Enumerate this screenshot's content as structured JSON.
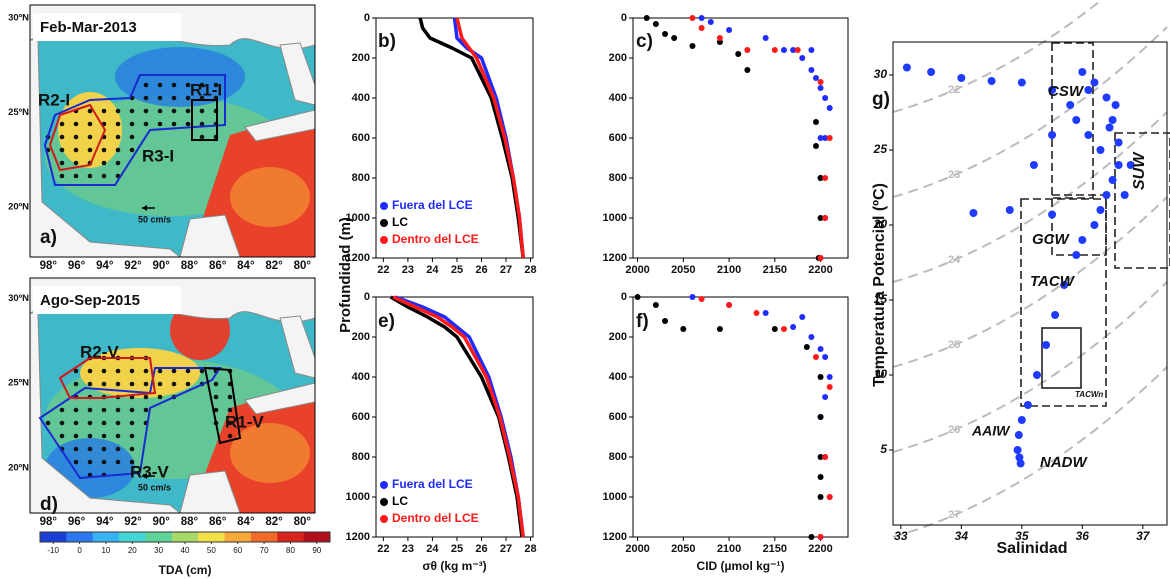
{
  "chart_data": [
    {
      "type": "map",
      "panel": "a)",
      "title": "Feb-Mar-2013",
      "xlim": [
        -99.3,
        -79.1
      ],
      "ylim": [
        17.35,
        30.7
      ],
      "xticks": [
        {
          "value": -98,
          "label": "98°"
        },
        {
          "value": -96,
          "label": "96°"
        },
        {
          "value": -94,
          "label": "94°"
        },
        {
          "value": -92,
          "label": "92°"
        },
        {
          "value": -90,
          "label": "90°"
        },
        {
          "value": -88,
          "label": "88°"
        },
        {
          "value": -86,
          "label": "86°"
        },
        {
          "value": -84,
          "label": "84°"
        },
        {
          "value": -82,
          "label": "82°"
        },
        {
          "value": -80,
          "label": "80°"
        }
      ],
      "yticks": [
        {
          "value": 30,
          "label": "30ºN"
        },
        {
          "value": 25,
          "label": "25ºN"
        },
        {
          "value": 20,
          "label": "20ºN"
        }
      ],
      "regions": [
        "R1-I",
        "R2-I",
        "R3-I"
      ],
      "scale_label": "50 cm/s"
    },
    {
      "type": "map",
      "panel": "d)",
      "title": "Ago-Sep-2015",
      "xlim": [
        -99.3,
        -79.1
      ],
      "ylim": [
        17.35,
        31.2
      ],
      "xticks": [
        {
          "value": -98,
          "label": "98°"
        },
        {
          "value": -96,
          "label": "96°"
        },
        {
          "value": -94,
          "label": "94°"
        },
        {
          "value": -92,
          "label": "92°"
        },
        {
          "value": -90,
          "label": "90°"
        },
        {
          "value": -88,
          "label": "88°"
        },
        {
          "value": -86,
          "label": "86°"
        },
        {
          "value": -84,
          "label": "84°"
        },
        {
          "value": -82,
          "label": "82°"
        },
        {
          "value": -80,
          "label": "80°"
        }
      ],
      "yticks": [
        {
          "value": 30,
          "label": "30ºN"
        },
        {
          "value": 25,
          "label": "25ºN"
        },
        {
          "value": 20,
          "label": "20ºN"
        }
      ],
      "regions": [
        "R1-V",
        "R2-V",
        "R3-V"
      ],
      "scale_label": "50 cm/s"
    },
    {
      "type": "colorbar",
      "xlabel": "TDA (cm)",
      "xlim": [
        -15,
        95
      ],
      "xticks": [
        -10,
        0,
        10,
        20,
        30,
        40,
        50,
        60,
        70,
        80,
        90
      ],
      "colors": [
        "#1a3fd6",
        "#2c78f0",
        "#38b3f2",
        "#45d6d6",
        "#5ed39a",
        "#a6d86a",
        "#f2e04a",
        "#f6a93a",
        "#f06a2a",
        "#d8241f",
        "#b0101a"
      ]
    },
    {
      "type": "line",
      "panel": "b)",
      "ylabel": "Profundidad (m)",
      "yreverse": true,
      "xlim": [
        21.7,
        28.1
      ],
      "xticks": [
        22,
        23,
        24,
        25,
        26,
        27,
        28
      ],
      "ylim": [
        0,
        1200
      ],
      "yticks": [
        0,
        200,
        400,
        600,
        800,
        1000,
        1200
      ],
      "y": [
        0,
        50,
        100,
        150,
        200,
        400,
        600,
        800,
        1000,
        1200
      ],
      "series": [
        {
          "name": "Fuera del LCE",
          "color": "#1f2bff",
          "values": [
            24.9,
            24.95,
            25.0,
            25.4,
            26.0,
            26.6,
            27.0,
            27.3,
            27.55,
            27.7
          ]
        },
        {
          "name": "LC",
          "color": "#000000",
          "values": [
            23.5,
            23.6,
            23.9,
            24.8,
            25.6,
            26.4,
            26.85,
            27.25,
            27.5,
            27.7
          ]
        },
        {
          "name": "Dentro del LCE",
          "color": "#ff1a1a",
          "values": [
            25.0,
            25.1,
            25.2,
            25.5,
            25.8,
            26.5,
            26.95,
            27.3,
            27.55,
            27.7
          ]
        }
      ]
    },
    {
      "type": "scatter",
      "panel": "c)",
      "yreverse": true,
      "xlim": [
        1995,
        2230
      ],
      "xticks": [
        2000,
        2050,
        2100,
        2150,
        2200
      ],
      "ylim": [
        0,
        1200
      ],
      "yticks": [
        0,
        200,
        400,
        600,
        800,
        1000,
        1200
      ],
      "series": [
        {
          "name": "Fuera del LCE",
          "color": "#1f2bff",
          "x": [
            2070,
            2080,
            2100,
            2140,
            2160,
            2170,
            2180,
            2190,
            2190,
            2195,
            2200,
            2205,
            2210,
            2200,
            2205,
            2200,
            2205,
            2200
          ],
          "values": [
            0,
            20,
            60,
            100,
            160,
            160,
            200,
            160,
            260,
            300,
            350,
            400,
            450,
            600,
            600,
            800,
            1000,
            1200
          ]
        },
        {
          "name": "LC",
          "color": "#000000",
          "x": [
            2010,
            2020,
            2030,
            2040,
            2060,
            2090,
            2110,
            2120,
            2195,
            2195,
            2200,
            2200,
            2198
          ],
          "values": [
            0,
            30,
            80,
            100,
            140,
            120,
            180,
            260,
            520,
            640,
            800,
            1000,
            1200
          ]
        },
        {
          "name": "Dentro del LCE",
          "color": "#ff1a1a",
          "x": [
            2060,
            2070,
            2090,
            2120,
            2150,
            2175,
            2200,
            2210,
            2205,
            2205,
            2200
          ],
          "values": [
            0,
            50,
            100,
            160,
            160,
            160,
            320,
            600,
            800,
            1000,
            1200
          ]
        }
      ]
    },
    {
      "type": "line",
      "panel": "e)",
      "xlabel": "σθ (kg m⁻³)",
      "yreverse": true,
      "xlim": [
        21.7,
        28.1
      ],
      "xticks": [
        22,
        23,
        24,
        25,
        26,
        27,
        28
      ],
      "ylim": [
        0,
        1200
      ],
      "yticks": [
        0,
        200,
        400,
        600,
        800,
        1000,
        1200
      ],
      "y": [
        0,
        50,
        100,
        150,
        200,
        400,
        600,
        800,
        1000,
        1200
      ],
      "series": [
        {
          "name": "Fuera del LCE",
          "color": "#1f2bff",
          "values": [
            22.5,
            23.6,
            24.5,
            25.0,
            25.5,
            26.3,
            26.8,
            27.2,
            27.5,
            27.7
          ]
        },
        {
          "name": "LC",
          "color": "#000000",
          "values": [
            22.3,
            23.0,
            23.8,
            24.5,
            25.0,
            26.0,
            26.7,
            27.1,
            27.45,
            27.65
          ]
        },
        {
          "name": "Dentro del LCE",
          "color": "#ff1a1a",
          "values": [
            22.4,
            23.3,
            24.2,
            24.8,
            25.3,
            26.2,
            26.75,
            27.15,
            27.5,
            27.7
          ]
        }
      ]
    },
    {
      "type": "scatter",
      "panel": "f)",
      "xlabel": "CID (µmol kg⁻¹)",
      "yreverse": true,
      "xlim": [
        1995,
        2230
      ],
      "xticks": [
        2000,
        2050,
        2100,
        2150,
        2200
      ],
      "ylim": [
        0,
        1200
      ],
      "yticks": [
        0,
        200,
        400,
        600,
        800,
        1000,
        1200
      ],
      "series": [
        {
          "name": "Fuera del LCE",
          "color": "#1f2bff",
          "x": [
            2060,
            2100,
            2140,
            2170,
            2180,
            2190,
            2200,
            2205,
            2210,
            2205,
            2200,
            2205,
            2210,
            2200
          ],
          "values": [
            0,
            40,
            80,
            150,
            100,
            200,
            260,
            300,
            400,
            500,
            600,
            800,
            1000,
            1200
          ]
        },
        {
          "name": "LC",
          "color": "#000000",
          "x": [
            2000,
            2020,
            2030,
            2050,
            2090,
            2150,
            2185,
            2200,
            2200,
            2200,
            2200,
            2200,
            2190
          ],
          "values": [
            0,
            40,
            120,
            160,
            160,
            160,
            250,
            400,
            600,
            800,
            900,
            1000,
            1200
          ]
        },
        {
          "name": "Dentro del LCE",
          "color": "#ff1a1a",
          "x": [
            2070,
            2100,
            2130,
            2160,
            2195,
            2210,
            2205,
            2210,
            2200
          ],
          "values": [
            10,
            40,
            80,
            160,
            300,
            450,
            800,
            1000,
            1200
          ]
        }
      ]
    },
    {
      "type": "scatter",
      "panel": "g)",
      "xlabel": "Salinidad",
      "ylabel": "Temperatura Potencial (ºC)",
      "color": "#1f3bff",
      "xlim": [
        32.87,
        37.4
      ],
      "xticks": [
        33,
        34,
        35,
        36,
        37
      ],
      "ylim": [
        0,
        32.2
      ],
      "yticks": [
        5,
        10,
        15,
        20,
        25,
        30
      ],
      "x": [
        33.1,
        33.5,
        34.0,
        34.5,
        35.0,
        35.5,
        35.8,
        36.0,
        36.2,
        36.4,
        36.5,
        36.6,
        36.6,
        36.5,
        36.4,
        36.3,
        36.2,
        36.0,
        35.9,
        35.7,
        35.55,
        35.4,
        35.25,
        35.1,
        35.0,
        34.95,
        34.93,
        34.96,
        34.98,
        35.5,
        35.2,
        34.8,
        35.9,
        36.1,
        36.3,
        36.45,
        36.55,
        36.1,
        34.2,
        35.5,
        36.7,
        36.8
      ],
      "values": [
        30.5,
        30.2,
        29.8,
        29.6,
        29.5,
        29.0,
        28.0,
        30.2,
        29.5,
        28.5,
        27.0,
        25.5,
        24.0,
        23.0,
        22.0,
        21.0,
        20.0,
        19.0,
        18.0,
        16.0,
        14.0,
        12.0,
        10.0,
        8.0,
        7.0,
        6.0,
        5.0,
        4.5,
        4.1,
        26.0,
        24.0,
        21.0,
        27.0,
        26.0,
        25.0,
        26.5,
        28.0,
        29.0,
        20.8,
        20.7,
        22.0,
        24.0
      ],
      "contour_labels": [
        22,
        23,
        24,
        25,
        26,
        27
      ],
      "water_masses": [
        "CSW",
        "SUW",
        "GCW",
        "TACW",
        "TACWn",
        "AAIW",
        "NADW"
      ]
    }
  ]
}
